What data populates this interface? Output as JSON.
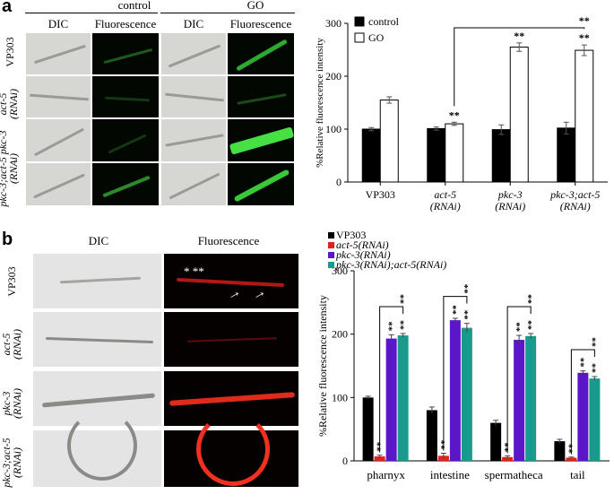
{
  "panel_a": {
    "letter": "a",
    "group_headers": [
      "control",
      "GO"
    ],
    "column_headers": [
      "DIC",
      "Fluorescence",
      "DIC",
      "Fluorescence"
    ],
    "row_labels": [
      {
        "lines": [
          "VP303"
        ],
        "italic": false
      },
      {
        "lines": [
          "act-5",
          "(RNAi)"
        ],
        "italic": true
      },
      {
        "lines": [
          "pkc-3;act-5 pkc-3",
          "(RNAi)"
        ],
        "italic": true
      },
      {
        "lines": [
          "",
          "(RNAi)"
        ],
        "italic": true
      }
    ]
  },
  "panel_b": {
    "letter": "b",
    "column_headers": [
      "DIC",
      "Fluorescence"
    ],
    "row_labels": [
      {
        "lines": [
          "VP303"
        ],
        "italic": false
      },
      {
        "lines": [
          "act-5",
          "(RNAi)"
        ],
        "italic": true
      },
      {
        "lines": [
          "pkc-3",
          "(RNAi)"
        ],
        "italic": true
      },
      {
        "lines": [
          "pkc-3;act-5",
          "(RNAi)"
        ],
        "italic": true
      }
    ],
    "annotations": {
      "stars": "*  **"
    }
  },
  "chart_data": [
    {
      "type": "bar",
      "ylabel": "%Relative fluorescence intensity",
      "ylim": [
        0,
        300
      ],
      "yticks": [
        0,
        100,
        200,
        300
      ],
      "categories": [
        "VP303",
        "act-5\n(RNAi)",
        "pkc-3\n(RNAi)",
        "pkc-3;act-5\n(RNAi)"
      ],
      "legend_position": "top-left",
      "series": [
        {
          "name": "control",
          "color": "#000000",
          "values": [
            100,
            101,
            99,
            102
          ],
          "errors": [
            3,
            3,
            9,
            11
          ],
          "marks": [
            "",
            "",
            "",
            ""
          ]
        },
        {
          "name": "GO",
          "color": "#ffffff",
          "values": [
            155,
            110,
            255,
            249
          ],
          "errors": [
            6,
            3,
            8,
            10
          ],
          "marks": [
            "",
            "**",
            "**",
            "**"
          ]
        }
      ],
      "brackets": [
        {
          "from": 1,
          "to": 3,
          "mark": "**"
        }
      ]
    },
    {
      "type": "bar",
      "ylabel": "%Relative fluorescence intensity",
      "ylim": [
        0,
        300
      ],
      "yticks": [
        0,
        100,
        200,
        300
      ],
      "categories": [
        "pharnyx",
        "intestine",
        "spermatheca",
        "tail"
      ],
      "legend_position": "top-left",
      "series": [
        {
          "name": "VP303",
          "color": "#000000",
          "values": [
            100,
            80,
            60,
            31
          ],
          "errors": [
            2,
            5,
            4,
            3
          ],
          "marks": [
            "",
            "",
            "",
            ""
          ]
        },
        {
          "name": "act-5(RNAi)",
          "color": "#e0221a",
          "values": [
            7,
            8,
            6,
            5
          ],
          "errors": [
            2,
            4,
            2,
            1
          ],
          "marks": [
            "**",
            "**",
            "**",
            "**"
          ]
        },
        {
          "name": "pkc-3(RNAi)",
          "color": "#5a16c8",
          "values": [
            193,
            222,
            191,
            139
          ],
          "errors": [
            6,
            3,
            7,
            3
          ],
          "marks": [
            "**",
            "**",
            "**",
            "**"
          ]
        },
        {
          "name": "pkc-3(RNAi);act-5(RNAi)",
          "color": "#1a9a8c",
          "values": [
            198,
            210,
            197,
            130
          ],
          "errors": [
            3,
            7,
            4,
            3
          ],
          "marks": [
            "**",
            "**",
            "**",
            "**"
          ]
        }
      ],
      "brackets": [
        {
          "group": 0,
          "from": 1,
          "to": 3,
          "mark": "**"
        },
        {
          "group": 1,
          "from": 1,
          "to": 3,
          "mark": "**"
        },
        {
          "group": 2,
          "from": 1,
          "to": 3,
          "mark": "**"
        },
        {
          "group": 3,
          "from": 1,
          "to": 3,
          "mark": "**"
        }
      ]
    }
  ]
}
